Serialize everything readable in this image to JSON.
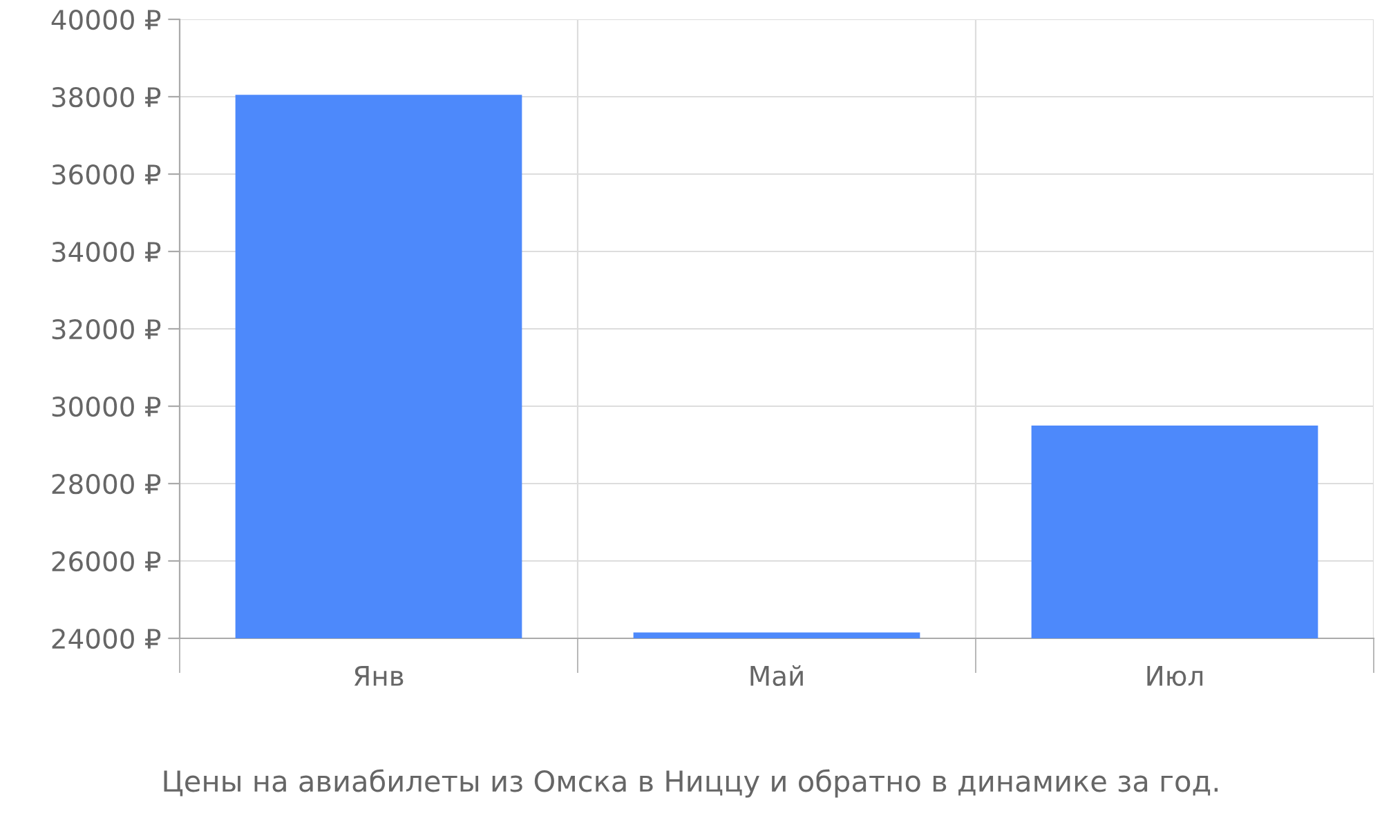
{
  "chart_data": {
    "type": "bar",
    "categories": [
      "Янв",
      "Май",
      "Июл"
    ],
    "values": [
      38050,
      24150,
      29500
    ],
    "color": "#4d89fb",
    "ylim": [
      24000,
      40000
    ],
    "yticks": [
      {
        "value": 24000,
        "label": "24000 ₽"
      },
      {
        "value": 26000,
        "label": "26000 ₽"
      },
      {
        "value": 28000,
        "label": "28000 ₽"
      },
      {
        "value": 30000,
        "label": "30000 ₽"
      },
      {
        "value": 32000,
        "label": "32000 ₽"
      },
      {
        "value": 34000,
        "label": "34000 ₽"
      },
      {
        "value": 36000,
        "label": "36000 ₽"
      },
      {
        "value": 38000,
        "label": "38000 ₽"
      },
      {
        "value": 40000,
        "label": "40000 ₽"
      }
    ],
    "grid": true,
    "annotations": [
      "Цены на авиабилеты из Омска в Ниццу и обратно в динамике за год."
    ]
  }
}
